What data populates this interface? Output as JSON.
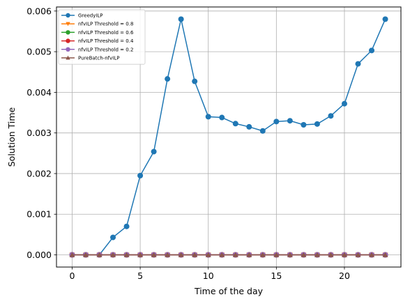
{
  "chart_data": {
    "type": "line",
    "xlabel": "Time of the day",
    "ylabel": "Solution Time",
    "xlim": [
      -1.15,
      24.15
    ],
    "ylim": [
      -0.0003,
      0.0061
    ],
    "xticks": [
      0,
      5,
      10,
      15,
      20
    ],
    "xtick_labels": [
      "0",
      "5",
      "10",
      "15",
      "20"
    ],
    "yticks": [
      0,
      0.001,
      0.002,
      0.003,
      0.004,
      0.005,
      0.006
    ],
    "ytick_labels": [
      "0.000",
      "0.001",
      "0.002",
      "0.003",
      "0.004",
      "0.005",
      "0.006"
    ],
    "grid": true,
    "legend_position": "top-left",
    "x": [
      0,
      1,
      2,
      3,
      4,
      5,
      6,
      7,
      8,
      9,
      10,
      11,
      12,
      13,
      14,
      15,
      16,
      17,
      18,
      19,
      20,
      21,
      22,
      23
    ],
    "series": [
      {
        "name": "GreedyILP",
        "color": "#1f77b4",
        "marker": "circle",
        "values": [
          0.0,
          0.0,
          0.0,
          0.00043,
          0.0007,
          0.00195,
          0.00254,
          0.00433,
          0.0058,
          0.00427,
          0.0034,
          0.00338,
          0.00323,
          0.00315,
          0.00305,
          0.00328,
          0.0033,
          0.0032,
          0.00322,
          0.00342,
          0.00372,
          0.0047,
          0.00503,
          0.0058
        ]
      },
      {
        "name": "nfvILP Threshold = 0.8",
        "color": "#ff7f0e",
        "marker": "triangle-down",
        "values": [
          0,
          0,
          0,
          0,
          0,
          0,
          0,
          0,
          0,
          0,
          0,
          0,
          0,
          0,
          0,
          0,
          0,
          0,
          0,
          0,
          0,
          0,
          0,
          0
        ]
      },
      {
        "name": "nfvILP Threshold = 0.6",
        "color": "#2ca02c",
        "marker": "circle",
        "values": [
          0,
          0,
          0,
          0,
          0,
          0,
          0,
          0,
          0,
          0,
          0,
          0,
          0,
          0,
          0,
          0,
          0,
          0,
          0,
          0,
          0,
          0,
          0,
          0
        ]
      },
      {
        "name": "nfvILP Threshold = 0.4",
        "color": "#d62728",
        "marker": "circle",
        "values": [
          0,
          0,
          0,
          0,
          0,
          0,
          0,
          0,
          0,
          0,
          0,
          0,
          0,
          0,
          0,
          0,
          0,
          0,
          0,
          0,
          0,
          0,
          0,
          0
        ]
      },
      {
        "name": "nfvILP Threshold = 0.2",
        "color": "#9467bd",
        "marker": "circle",
        "values": [
          0,
          0,
          0,
          0,
          0,
          0,
          0,
          0,
          0,
          0,
          0,
          0,
          0,
          0,
          0,
          0,
          0,
          0,
          0,
          0,
          0,
          0,
          0,
          0
        ]
      },
      {
        "name": "PureBatch-nfvILP",
        "color": "#8c564b",
        "marker": "triangle-up",
        "values": [
          0,
          0,
          0,
          0,
          0,
          0,
          0,
          0,
          0,
          0,
          0,
          0,
          0,
          0,
          0,
          0,
          0,
          0,
          0,
          0,
          0,
          0,
          0,
          0
        ]
      }
    ]
  }
}
